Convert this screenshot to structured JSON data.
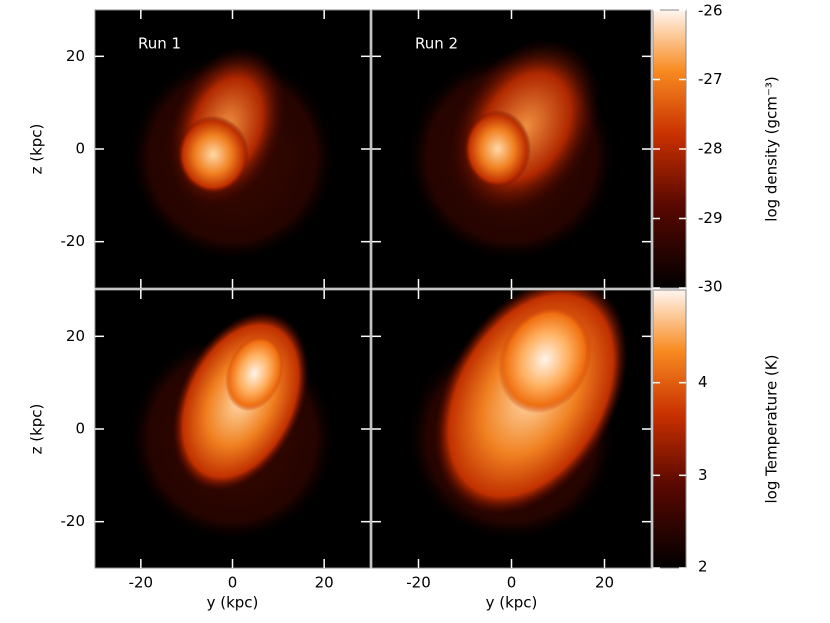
{
  "chart_data": [
    {
      "type": "image",
      "title": "Run 1",
      "ylabel": "z (kpc)",
      "xlim": [
        -30,
        30
      ],
      "ylim": [
        -30,
        30
      ],
      "xticks": [
        -20,
        0,
        20
      ],
      "yticks": [
        -20,
        0,
        20
      ]
    },
    {
      "type": "image",
      "title": "Run 2",
      "xlim": [
        -30,
        30
      ],
      "ylim": [
        -30,
        30
      ],
      "xticks": [
        -20,
        0,
        20
      ],
      "yticks": [
        -20,
        0,
        20
      ]
    },
    {
      "type": "image",
      "ylabel": "z (kpc)",
      "xlabel": "y (kpc)",
      "xlim": [
        -30,
        30
      ],
      "ylim": [
        -30,
        30
      ],
      "xticks": [
        -20,
        0,
        20
      ],
      "yticks": [
        -20,
        0,
        20
      ]
    },
    {
      "type": "image",
      "xlabel": "y (kpc)",
      "xlim": [
        -30,
        30
      ],
      "ylim": [
        -30,
        30
      ],
      "xticks": [
        -20,
        0,
        20
      ],
      "yticks": [
        -20,
        0,
        20
      ]
    },
    {
      "type": "colorbar",
      "label": "log density (gcm⁻³)",
      "ylim": [
        -30,
        -26
      ],
      "yticks": [
        -30,
        -29,
        -28,
        -27,
        -26
      ]
    },
    {
      "type": "colorbar",
      "label": "log Temperature (K)",
      "ylim": [
        2,
        5
      ],
      "yticks": [
        2,
        3,
        4
      ]
    }
  ]
}
